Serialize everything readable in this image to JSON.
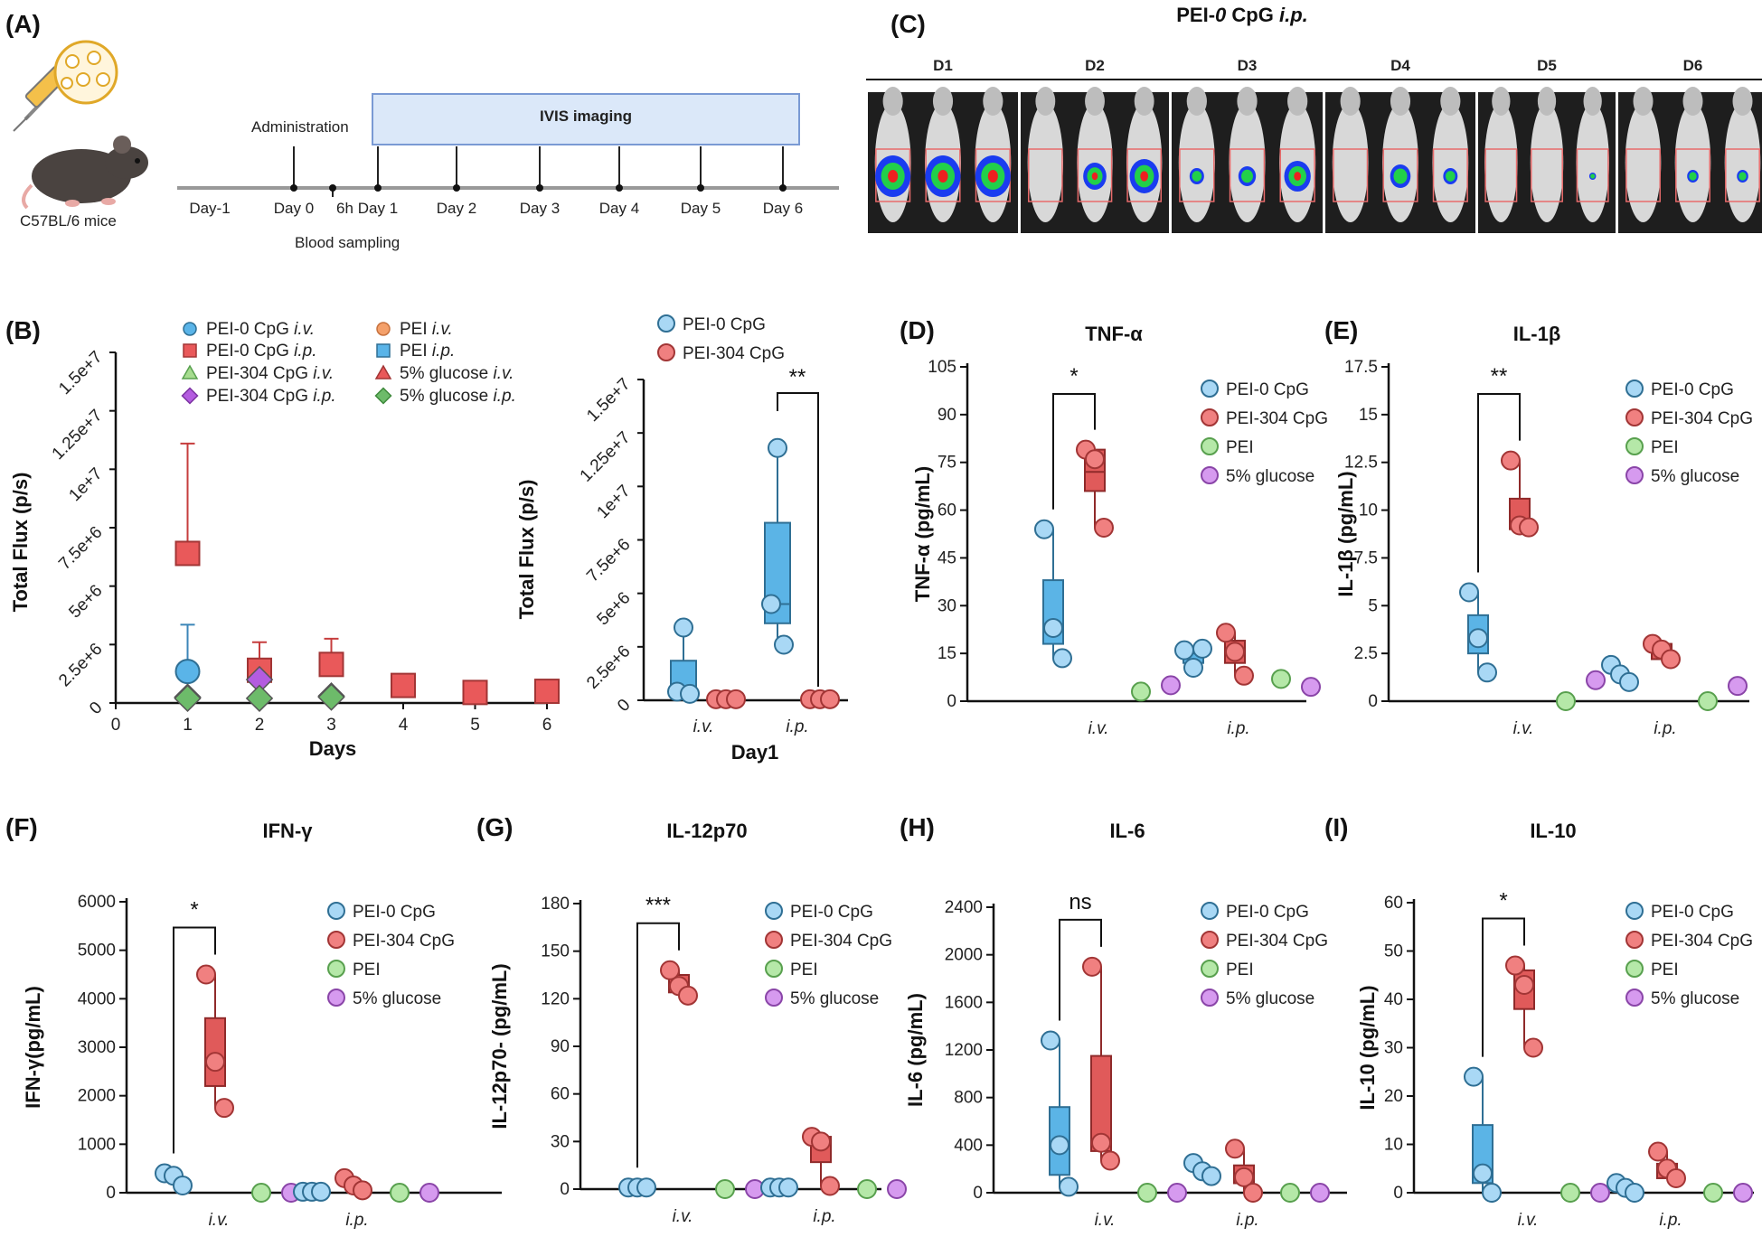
{
  "panels": {
    "A": {
      "label": "(A)",
      "mouse_label": "C57BL/6 mice",
      "administration": "Administration",
      "blood_sampling": "Blood sampling",
      "imaging": "IVIS imaging",
      "six_h": "6h",
      "days": [
        "Day-1",
        "Day 0",
        "Day 1",
        "Day 2",
        "Day 3",
        "Day 4",
        "Day 5",
        "Day 6"
      ]
    },
    "C": {
      "label": "(C)",
      "title_prefix": "PEI-",
      "title_zero": "0",
      "title_mid": " CpG ",
      "title_route": "i.p.",
      "days": [
        "D1",
        "D2",
        "D3",
        "D4",
        "D5",
        "D6"
      ]
    }
  },
  "chart_data": [
    {
      "id": "B-left",
      "panel_label": "(B)",
      "type": "scatter",
      "xlabel": "Days",
      "ylabel": "Total Flux (p/s)",
      "x_ticks": [
        "0",
        "1",
        "2",
        "3",
        "4",
        "5",
        "6"
      ],
      "y_ticks": [
        "0",
        "2.5e+6",
        "5e+6",
        "7.5e+6",
        "1e+7",
        "1.25e+7",
        "1.5e+7"
      ],
      "ylim": [
        0,
        15000000
      ],
      "legend": [
        {
          "name": "PEI-0 CpG",
          "route": "i.v."
        },
        {
          "name": "PEI-0 CpG",
          "route": "i.p."
        },
        {
          "name": "PEI-304 CpG",
          "route": "i.v."
        },
        {
          "name": "PEI-304 CpG",
          "route": "i.p."
        },
        {
          "name": "PEI",
          "route": "i.v."
        },
        {
          "name": "PEI",
          "route": "i.p."
        },
        {
          "name": "5% glucose",
          "route": "i.v."
        },
        {
          "name": "5% glucose",
          "route": "i.p."
        }
      ],
      "series": [
        {
          "name": "PEI-0 CpG i.p.",
          "x": [
            1,
            2,
            3,
            4,
            5,
            6
          ],
          "y": [
            6400000,
            1400000,
            1650000,
            750000,
            450000,
            500000
          ],
          "err": [
            4700000,
            1200000,
            1100000,
            0,
            0,
            0
          ],
          "color": "#e9595a",
          "marker": "square"
        },
        {
          "name": "PEI-0 CpG i.v.",
          "x": [
            1
          ],
          "y": [
            1350000
          ],
          "err": [
            2000000
          ],
          "color": "#5ab4e8",
          "marker": "circle"
        },
        {
          "name": "PEI-304 CpG i.p.",
          "x": [
            1,
            2,
            3
          ],
          "y": [
            250000,
            1000000,
            300000
          ],
          "err": [
            0,
            0,
            0
          ],
          "color": "#b45ce0",
          "marker": "diamond"
        },
        {
          "name": "5% glucose i.p.",
          "x": [
            1,
            2,
            3
          ],
          "y": [
            200000,
            200000,
            250000
          ],
          "err": [
            0,
            0,
            0
          ],
          "color": "#6dbb6a",
          "marker": "diamond"
        }
      ]
    },
    {
      "id": "B-right",
      "type": "box",
      "xlabel": "Day1",
      "ylabel": "Total Flux (p/s)",
      "categories": [
        "i.v.",
        "i.p."
      ],
      "y_ticks": [
        "0",
        "2.5e+6",
        "5e+6",
        "7.5e+6",
        "1e+7",
        "1.25e+7",
        "1.5e+7"
      ],
      "ylim": [
        0,
        15000000
      ],
      "legend": [
        "PEI-0 CpG",
        "PEI-304 CpG"
      ],
      "significance": [
        {
          "label": "**",
          "category": "i.p."
        }
      ],
      "groups": [
        {
          "name": "PEI-0 CpG",
          "category": "i.v.",
          "points": [
            3400000,
            400000,
            300000
          ],
          "box": [
            300000,
            1850000
          ],
          "median": 400000,
          "whisker": [
            300000,
            3400000
          ]
        },
        {
          "name": "PEI-304 CpG",
          "category": "i.v.",
          "points": [
            50000,
            50000,
            50000
          ]
        },
        {
          "name": "PEI-0 CpG",
          "category": "i.p.",
          "points": [
            11800000,
            4500000,
            2600000
          ],
          "box": [
            3600000,
            8300000
          ],
          "median": 4500000,
          "whisker": [
            2600000,
            11800000
          ]
        },
        {
          "name": "PEI-304 CpG",
          "category": "i.p.",
          "points": [
            50000,
            50000,
            50000
          ]
        }
      ]
    },
    {
      "id": "D",
      "panel_label": "(D)",
      "title": "TNF-α",
      "type": "box",
      "ylabel": "TNF-α (pg/mL)",
      "categories": [
        "i.v.",
        "i.p."
      ],
      "y_ticks": [
        "0",
        "15",
        "30",
        "45",
        "60",
        "75",
        "90",
        "105"
      ],
      "ylim": [
        0,
        105
      ],
      "legend": [
        "PEI-0 CpG",
        "PEI-304 CpG",
        "PEI",
        "5% glucose"
      ],
      "significance": [
        {
          "label": "*",
          "category": "i.v."
        }
      ],
      "groups": [
        {
          "name": "PEI-0 CpG",
          "category": "i.v.",
          "points": [
            54,
            23,
            13.5
          ],
          "box": [
            18,
            38
          ],
          "median": 22,
          "whisker": [
            13.5,
            54
          ]
        },
        {
          "name": "PEI-304 CpG",
          "category": "i.v.",
          "points": [
            79,
            76,
            54.5
          ],
          "box": [
            66,
            79
          ],
          "median": 72,
          "whisker": [
            54.5,
            79
          ]
        },
        {
          "name": "PEI",
          "category": "i.v.",
          "points": [
            3
          ]
        },
        {
          "name": "5% glucose",
          "category": "i.v.",
          "points": [
            5
          ]
        },
        {
          "name": "PEI-0 CpG",
          "category": "i.p.",
          "points": [
            16,
            10.5,
            16.5
          ],
          "box": [
            12,
            17
          ],
          "median": 15,
          "whisker": [
            10.5,
            17
          ]
        },
        {
          "name": "PEI-304 CpG",
          "category": "i.p.",
          "points": [
            21.5,
            15.5,
            8
          ],
          "box": [
            12,
            19
          ],
          "median": 16,
          "whisker": [
            8,
            21.5
          ]
        },
        {
          "name": "PEI",
          "category": "i.p.",
          "points": [
            7
          ]
        },
        {
          "name": "5% glucose",
          "category": "i.p.",
          "points": [
            4.5
          ]
        }
      ]
    },
    {
      "id": "E",
      "panel_label": "(E)",
      "title": "IL-1β",
      "type": "box",
      "ylabel": "IL-1β (pg/mL)",
      "categories": [
        "i.v.",
        "i.p."
      ],
      "y_ticks": [
        "0",
        "2.5",
        "5",
        "7.5",
        "10",
        "12.5",
        "15",
        "17.5"
      ],
      "ylim": [
        0,
        17.5
      ],
      "legend": [
        "PEI-0 CpG",
        "PEI-304 CpG",
        "PEI",
        "5% glucose"
      ],
      "significance": [
        {
          "label": "**",
          "category": "i.v."
        }
      ],
      "groups": [
        {
          "name": "PEI-0 CpG",
          "category": "i.v.",
          "points": [
            5.7,
            3.3,
            1.5
          ],
          "box": [
            2.5,
            4.5
          ],
          "median": 3.2,
          "whisker": [
            1.5,
            5.7
          ]
        },
        {
          "name": "PEI-304 CpG",
          "category": "i.v.",
          "points": [
            12.6,
            9.2,
            9.1
          ],
          "box": [
            9,
            10.6
          ],
          "median": 9.4,
          "whisker": [
            9,
            12.6
          ]
        },
        {
          "name": "PEI",
          "category": "i.v.",
          "points": [
            0
          ]
        },
        {
          "name": "5% glucose",
          "category": "i.v.",
          "points": [
            1.1
          ]
        },
        {
          "name": "PEI-0 CpG",
          "category": "i.p.",
          "points": [
            1.9,
            1.4,
            1
          ]
        },
        {
          "name": "PEI-304 CpG",
          "category": "i.p.",
          "points": [
            3,
            2.7,
            2.2
          ],
          "box": [
            2.2,
            3
          ],
          "median": 2.7,
          "whisker": [
            2.2,
            3
          ]
        },
        {
          "name": "PEI",
          "category": "i.p.",
          "points": [
            0
          ]
        },
        {
          "name": "5% glucose",
          "category": "i.p.",
          "points": [
            0.8
          ]
        }
      ]
    },
    {
      "id": "F",
      "panel_label": "(F)",
      "title": "IFN-γ",
      "type": "box",
      "ylabel": "IFN-γ(pg/mL)",
      "categories": [
        "i.v.",
        "i.p."
      ],
      "y_ticks": [
        "0",
        "1000",
        "2000",
        "3000",
        "4000",
        "5000",
        "6000"
      ],
      "ylim": [
        0,
        6000
      ],
      "legend": [
        "PEI-0 CpG",
        "PEI-304 CpG",
        "PEI",
        "5% glucose"
      ],
      "significance": [
        {
          "label": "*",
          "category": "i.v."
        }
      ],
      "groups": [
        {
          "name": "PEI-0 CpG",
          "category": "i.v.",
          "points": [
            400,
            350,
            150
          ]
        },
        {
          "name": "PEI-304 CpG",
          "category": "i.v.",
          "points": [
            4500,
            2700,
            1750
          ],
          "box": [
            2200,
            3600
          ],
          "median": 2700,
          "whisker": [
            1750,
            4500
          ]
        },
        {
          "name": "PEI",
          "category": "i.v.",
          "points": [
            0
          ]
        },
        {
          "name": "5% glucose",
          "category": "i.v.",
          "points": [
            0
          ]
        },
        {
          "name": "PEI-0 CpG",
          "category": "i.p.",
          "points": [
            20,
            20,
            20
          ]
        },
        {
          "name": "PEI-304 CpG",
          "category": "i.p.",
          "points": [
            300,
            150,
            50
          ]
        },
        {
          "name": "PEI",
          "category": "i.p.",
          "points": [
            0
          ]
        },
        {
          "name": "5% glucose",
          "category": "i.p.",
          "points": [
            0
          ]
        }
      ]
    },
    {
      "id": "G",
      "panel_label": "(G)",
      "title": "IL-12p70",
      "type": "box",
      "ylabel": "IL-12p70- (pg/mL)",
      "categories": [
        "i.v.",
        "i.p."
      ],
      "y_ticks": [
        "0",
        "30",
        "60",
        "90",
        "120",
        "150",
        "180"
      ],
      "ylim": [
        0,
        180
      ],
      "legend": [
        "PEI-0 CpG",
        "PEI-304 CpG",
        "PEI",
        "5% glucose"
      ],
      "significance": [
        {
          "label": "***",
          "category": "i.v."
        }
      ],
      "groups": [
        {
          "name": "PEI-0 CpG",
          "category": "i.v.",
          "points": [
            1,
            1,
            1
          ]
        },
        {
          "name": "PEI-304 CpG",
          "category": "i.v.",
          "points": [
            138,
            128,
            122
          ],
          "box": [
            124,
            135
          ],
          "median": 128,
          "whisker": [
            122,
            138
          ]
        },
        {
          "name": "PEI",
          "category": "i.v.",
          "points": [
            0
          ]
        },
        {
          "name": "5% glucose",
          "category": "i.v.",
          "points": [
            0
          ]
        },
        {
          "name": "PEI-0 CpG",
          "category": "i.p.",
          "points": [
            1,
            1,
            1
          ]
        },
        {
          "name": "PEI-304 CpG",
          "category": "i.p.",
          "points": [
            33,
            30,
            2
          ],
          "box": [
            17,
            33
          ],
          "median": 28,
          "whisker": [
            2,
            33
          ]
        },
        {
          "name": "PEI",
          "category": "i.p.",
          "points": [
            0
          ]
        },
        {
          "name": "5% glucose",
          "category": "i.p.",
          "points": [
            0
          ]
        }
      ]
    },
    {
      "id": "H",
      "panel_label": "(H)",
      "title": "IL-6",
      "type": "box",
      "ylabel": "IL-6 (pg/mL)",
      "categories": [
        "i.v.",
        "i.p."
      ],
      "y_ticks": [
        "0",
        "400",
        "800",
        "1200",
        "1600",
        "2000",
        "2400"
      ],
      "ylim": [
        0,
        2400
      ],
      "legend": [
        "PEI-0 CpG",
        "PEI-304 CpG",
        "PEI",
        "5% glucose"
      ],
      "significance": [
        {
          "label": "ns",
          "category": "i.v."
        }
      ],
      "groups": [
        {
          "name": "PEI-0 CpG",
          "category": "i.v.",
          "points": [
            1280,
            400,
            50
          ],
          "box": [
            150,
            720
          ],
          "median": 400,
          "whisker": [
            50,
            1280
          ]
        },
        {
          "name": "PEI-304 CpG",
          "category": "i.v.",
          "points": [
            1900,
            420,
            270
          ],
          "box": [
            350,
            1150
          ],
          "median": 420,
          "whisker": [
            270,
            1900
          ]
        },
        {
          "name": "PEI",
          "category": "i.v.",
          "points": [
            0
          ]
        },
        {
          "name": "5% glucose",
          "category": "i.v.",
          "points": [
            0
          ]
        },
        {
          "name": "PEI-0 CpG",
          "category": "i.p.",
          "points": [
            250,
            180,
            140
          ]
        },
        {
          "name": "PEI-304 CpG",
          "category": "i.p.",
          "points": [
            370,
            130,
            0
          ],
          "box": [
            80,
            230
          ],
          "median": 150,
          "whisker": [
            0,
            370
          ]
        },
        {
          "name": "PEI",
          "category": "i.p.",
          "points": [
            0
          ]
        },
        {
          "name": "5% glucose",
          "category": "i.p.",
          "points": [
            0
          ]
        }
      ]
    },
    {
      "id": "I",
      "panel_label": "(I)",
      "title": "IL-10",
      "type": "box",
      "ylabel": "IL-10 (pg/mL)",
      "categories": [
        "i.v.",
        "i.p."
      ],
      "y_ticks": [
        "0",
        "10",
        "20",
        "30",
        "40",
        "50",
        "60"
      ],
      "ylim": [
        0,
        60
      ],
      "legend": [
        "PEI-0 CpG",
        "PEI-304 CpG",
        "PEI",
        "5% glucose"
      ],
      "significance": [
        {
          "label": "*",
          "category": "i.v."
        }
      ],
      "groups": [
        {
          "name": "PEI-0 CpG",
          "category": "i.v.",
          "points": [
            24,
            4,
            0
          ],
          "box": [
            2,
            14
          ],
          "median": 4,
          "whisker": [
            0,
            24
          ]
        },
        {
          "name": "PEI-304 CpG",
          "category": "i.v.",
          "points": [
            47,
            43,
            30
          ],
          "box": [
            38,
            46
          ],
          "median": 43,
          "whisker": [
            30,
            47
          ]
        },
        {
          "name": "PEI",
          "category": "i.v.",
          "points": [
            0
          ]
        },
        {
          "name": "5% glucose",
          "category": "i.v.",
          "points": [
            0
          ]
        },
        {
          "name": "PEI-0 CpG",
          "category": "i.p.",
          "points": [
            2,
            1,
            0
          ]
        },
        {
          "name": "PEI-304 CpG",
          "category": "i.p.",
          "points": [
            8.5,
            5,
            3
          ],
          "box": [
            3,
            6
          ],
          "median": 5,
          "whisker": [
            3,
            8.5
          ]
        },
        {
          "name": "PEI",
          "category": "i.p.",
          "points": [
            0
          ]
        },
        {
          "name": "5% glucose",
          "category": "i.p.",
          "points": [
            0
          ]
        }
      ]
    }
  ],
  "colors": {
    "PEI-0 CpG": "#a9d8f5",
    "PEI-304 CpG": "#f08080",
    "PEI": "#b5e8a8",
    "5% glucose": "#d69aef",
    "box_blue": "#5bb4e6",
    "box_red": "#e05a5a"
  }
}
